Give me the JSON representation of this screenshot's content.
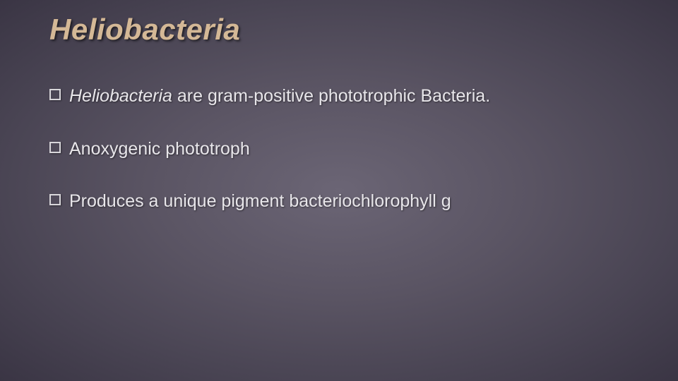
{
  "slide": {
    "title": "Heliobacteria",
    "title_color": "#d4b896",
    "title_fontsize": 42,
    "title_italic": true,
    "title_bold": true,
    "background_gradient": {
      "center": "#6b6575",
      "mid": "#5a5463",
      "outer": "#4a4554",
      "edge": "#3a3544"
    },
    "bullet_marker": {
      "type": "hollow-square",
      "size": 16,
      "border_color": "#d8d6da",
      "border_width": 2
    },
    "body_text_color": "#e8e6ea",
    "body_fontsize": 25,
    "bullets": [
      {
        "lead_italic": "Heliobacteria",
        "rest": " are gram-positive phototrophic Bacteria."
      },
      {
        "lead_italic": "",
        "rest": "Anoxygenic phototroph"
      },
      {
        "lead_italic": "",
        "rest": "Produces a unique pigment bacteriochlorophyll g"
      }
    ]
  }
}
